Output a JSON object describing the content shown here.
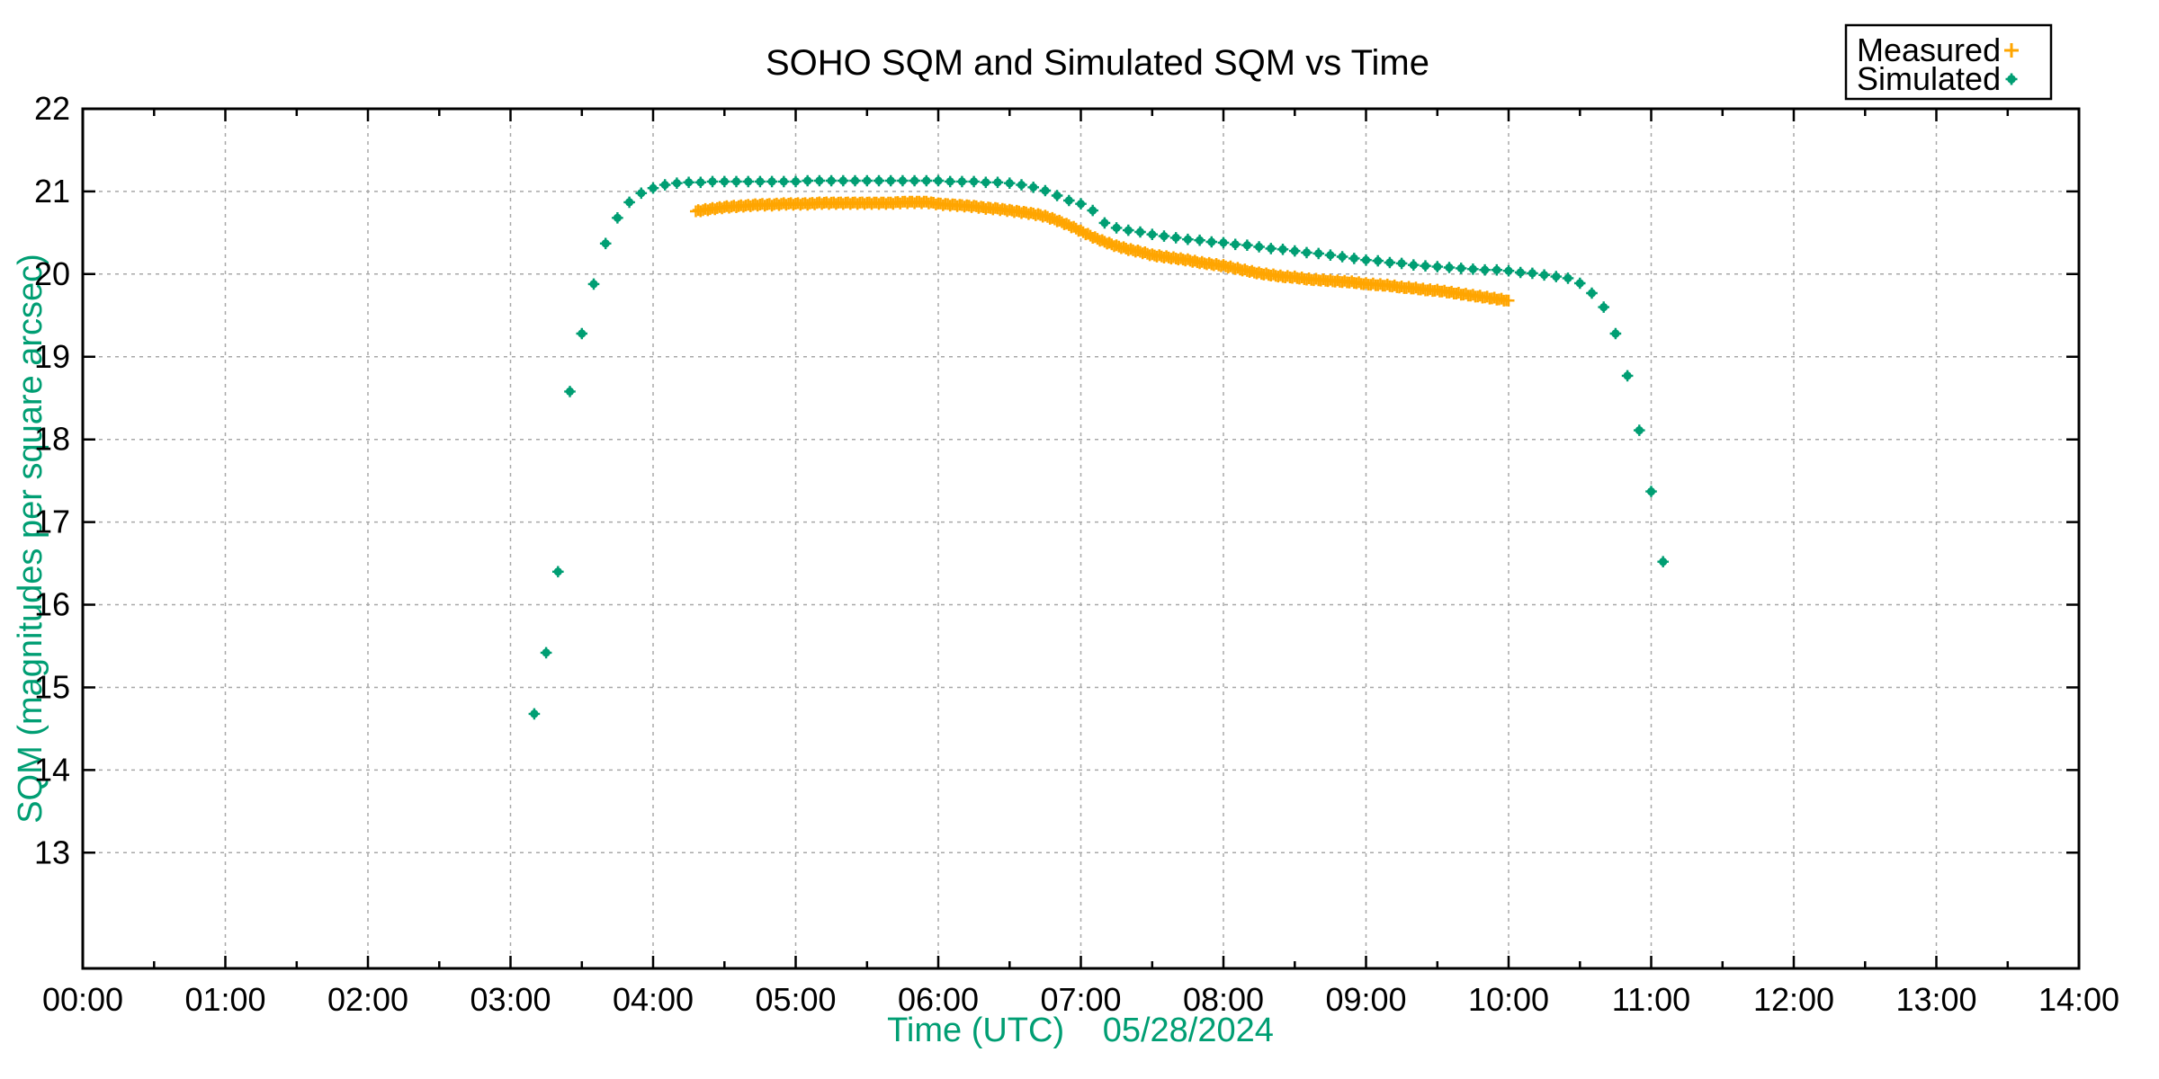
{
  "title": "SOHO SQM and Simulated SQM vs Time",
  "colors": {
    "measured": "#FFA500",
    "simulated": "#009E73",
    "axis_label": "#009E73",
    "grid": "#a8a8a8",
    "border": "#000000",
    "text": "#000000",
    "background": "#ffffff"
  },
  "legend": {
    "position": "top-right",
    "entries": [
      {
        "label": "Measured",
        "marker": "plus",
        "color": "#FFA500"
      },
      {
        "label": "Simulated",
        "marker": "dot",
        "color": "#009E73"
      }
    ]
  },
  "chart_data": {
    "type": "scatter",
    "title": "SOHO SQM and Simulated SQM vs Time",
    "xlabel": "Time (UTC)",
    "xlabel_date": "05/28/2024",
    "ylabel": "SQM (magnitudes per square arcsec)",
    "x_ticks": [
      "00:00",
      "01:00",
      "02:00",
      "03:00",
      "04:00",
      "05:00",
      "06:00",
      "07:00",
      "08:00",
      "09:00",
      "10:00",
      "11:00",
      "12:00",
      "13:00",
      "14:00"
    ],
    "x_minor_tick_minutes": 30,
    "y_ticks": [
      13,
      14,
      15,
      16,
      17,
      18,
      19,
      20,
      21,
      22
    ],
    "xlim_hours": [
      0,
      14
    ],
    "ylim": [
      11.6,
      22
    ],
    "grid": true,
    "series": [
      {
        "name": "Measured",
        "marker": "plus",
        "color": "#FFA500",
        "marker_cadence_minutes": 1,
        "points": [
          [
            "04:18",
            20.76
          ],
          [
            "04:20",
            20.77
          ],
          [
            "04:25",
            20.79
          ],
          [
            "04:30",
            20.81
          ],
          [
            "04:35",
            20.82
          ],
          [
            "04:40",
            20.83
          ],
          [
            "04:45",
            20.84
          ],
          [
            "04:50",
            20.84
          ],
          [
            "04:55",
            20.85
          ],
          [
            "05:00",
            20.85
          ],
          [
            "05:05",
            20.85
          ],
          [
            "05:10",
            20.86
          ],
          [
            "05:15",
            20.86
          ],
          [
            "05:20",
            20.86
          ],
          [
            "05:25",
            20.86
          ],
          [
            "05:30",
            20.86
          ],
          [
            "05:35",
            20.86
          ],
          [
            "05:40",
            20.86
          ],
          [
            "05:45",
            20.87
          ],
          [
            "05:50",
            20.87
          ],
          [
            "05:55",
            20.87
          ],
          [
            "06:00",
            20.85
          ],
          [
            "06:05",
            20.84
          ],
          [
            "06:10",
            20.83
          ],
          [
            "06:15",
            20.82
          ],
          [
            "06:20",
            20.8
          ],
          [
            "06:25",
            20.79
          ],
          [
            "06:30",
            20.77
          ],
          [
            "06:35",
            20.75
          ],
          [
            "06:40",
            20.73
          ],
          [
            "06:45",
            20.7
          ],
          [
            "06:50",
            20.65
          ],
          [
            "06:55",
            20.59
          ],
          [
            "07:00",
            20.52
          ],
          [
            "07:05",
            20.45
          ],
          [
            "07:10",
            20.39
          ],
          [
            "07:15",
            20.34
          ],
          [
            "07:20",
            20.3
          ],
          [
            "07:25",
            20.27
          ],
          [
            "07:30",
            20.23
          ],
          [
            "07:35",
            20.21
          ],
          [
            "07:40",
            20.19
          ],
          [
            "07:45",
            20.17
          ],
          [
            "07:50",
            20.14
          ],
          [
            "07:55",
            20.12
          ],
          [
            "08:00",
            20.1
          ],
          [
            "08:05",
            20.07
          ],
          [
            "08:10",
            20.04
          ],
          [
            "08:15",
            20.01
          ],
          [
            "08:20",
            19.99
          ],
          [
            "08:25",
            19.97
          ],
          [
            "08:30",
            19.96
          ],
          [
            "08:35",
            19.94
          ],
          [
            "08:40",
            19.93
          ],
          [
            "08:45",
            19.92
          ],
          [
            "08:50",
            19.91
          ],
          [
            "08:55",
            19.9
          ],
          [
            "09:00",
            19.88
          ],
          [
            "09:05",
            19.87
          ],
          [
            "09:10",
            19.86
          ],
          [
            "09:15",
            19.84
          ],
          [
            "09:20",
            19.83
          ],
          [
            "09:25",
            19.81
          ],
          [
            "09:30",
            19.8
          ],
          [
            "09:35",
            19.78
          ],
          [
            "09:40",
            19.76
          ],
          [
            "09:45",
            19.74
          ],
          [
            "09:50",
            19.72
          ],
          [
            "09:55",
            19.7
          ],
          [
            "10:00",
            19.68
          ]
        ]
      },
      {
        "name": "Simulated",
        "marker": "dot",
        "color": "#009E73",
        "marker_cadence_minutes": 5,
        "points": [
          [
            "03:10",
            14.68
          ],
          [
            "03:15",
            15.42
          ],
          [
            "03:20",
            16.4
          ],
          [
            "03:25",
            18.58
          ],
          [
            "03:30",
            19.28
          ],
          [
            "03:35",
            19.88
          ],
          [
            "03:40",
            20.37
          ],
          [
            "03:45",
            20.68
          ],
          [
            "03:50",
            20.87
          ],
          [
            "03:55",
            20.98
          ],
          [
            "04:00",
            21.04
          ],
          [
            "04:05",
            21.08
          ],
          [
            "04:10",
            21.1
          ],
          [
            "04:15",
            21.11
          ],
          [
            "04:20",
            21.11
          ],
          [
            "04:25",
            21.12
          ],
          [
            "04:30",
            21.12
          ],
          [
            "04:35",
            21.12
          ],
          [
            "04:40",
            21.12
          ],
          [
            "04:45",
            21.12
          ],
          [
            "04:50",
            21.12
          ],
          [
            "04:55",
            21.12
          ],
          [
            "05:00",
            21.12
          ],
          [
            "05:05",
            21.13
          ],
          [
            "05:10",
            21.13
          ],
          [
            "05:15",
            21.13
          ],
          [
            "05:20",
            21.13
          ],
          [
            "05:25",
            21.13
          ],
          [
            "05:30",
            21.13
          ],
          [
            "05:35",
            21.13
          ],
          [
            "05:40",
            21.13
          ],
          [
            "05:45",
            21.13
          ],
          [
            "05:50",
            21.13
          ],
          [
            "05:55",
            21.13
          ],
          [
            "06:00",
            21.13
          ],
          [
            "06:05",
            21.12
          ],
          [
            "06:10",
            21.12
          ],
          [
            "06:15",
            21.12
          ],
          [
            "06:20",
            21.11
          ],
          [
            "06:25",
            21.11
          ],
          [
            "06:30",
            21.1
          ],
          [
            "06:35",
            21.08
          ],
          [
            "06:40",
            21.05
          ],
          [
            "06:45",
            21.01
          ],
          [
            "06:50",
            20.95
          ],
          [
            "06:55",
            20.89
          ],
          [
            "07:00",
            20.85
          ],
          [
            "07:05",
            20.77
          ],
          [
            "07:10",
            20.62
          ],
          [
            "07:15",
            20.56
          ],
          [
            "07:20",
            20.53
          ],
          [
            "07:25",
            20.51
          ],
          [
            "07:30",
            20.48
          ],
          [
            "07:35",
            20.46
          ],
          [
            "07:40",
            20.44
          ],
          [
            "07:45",
            20.42
          ],
          [
            "07:50",
            20.41
          ],
          [
            "07:55",
            20.39
          ],
          [
            "08:00",
            20.38
          ],
          [
            "08:05",
            20.36
          ],
          [
            "08:10",
            20.35
          ],
          [
            "08:15",
            20.33
          ],
          [
            "08:20",
            20.31
          ],
          [
            "08:25",
            20.3
          ],
          [
            "08:30",
            20.28
          ],
          [
            "08:35",
            20.26
          ],
          [
            "08:40",
            20.25
          ],
          [
            "08:45",
            20.23
          ],
          [
            "08:50",
            20.21
          ],
          [
            "08:55",
            20.19
          ],
          [
            "09:00",
            20.17
          ],
          [
            "09:05",
            20.16
          ],
          [
            "09:10",
            20.14
          ],
          [
            "09:15",
            20.13
          ],
          [
            "09:20",
            20.11
          ],
          [
            "09:25",
            20.1
          ],
          [
            "09:30",
            20.09
          ],
          [
            "09:35",
            20.08
          ],
          [
            "09:40",
            20.07
          ],
          [
            "09:45",
            20.06
          ],
          [
            "09:50",
            20.05
          ],
          [
            "09:55",
            20.05
          ],
          [
            "10:00",
            20.04
          ],
          [
            "10:05",
            20.02
          ],
          [
            "10:10",
            20.01
          ],
          [
            "10:15",
            19.99
          ],
          [
            "10:20",
            19.97
          ],
          [
            "10:25",
            19.95
          ],
          [
            "10:30",
            19.89
          ],
          [
            "10:35",
            19.77
          ],
          [
            "10:40",
            19.6
          ],
          [
            "10:45",
            19.28
          ],
          [
            "10:50",
            18.77
          ],
          [
            "10:55",
            18.11
          ],
          [
            "11:00",
            17.37
          ],
          [
            "11:05",
            16.52
          ]
        ]
      }
    ]
  }
}
